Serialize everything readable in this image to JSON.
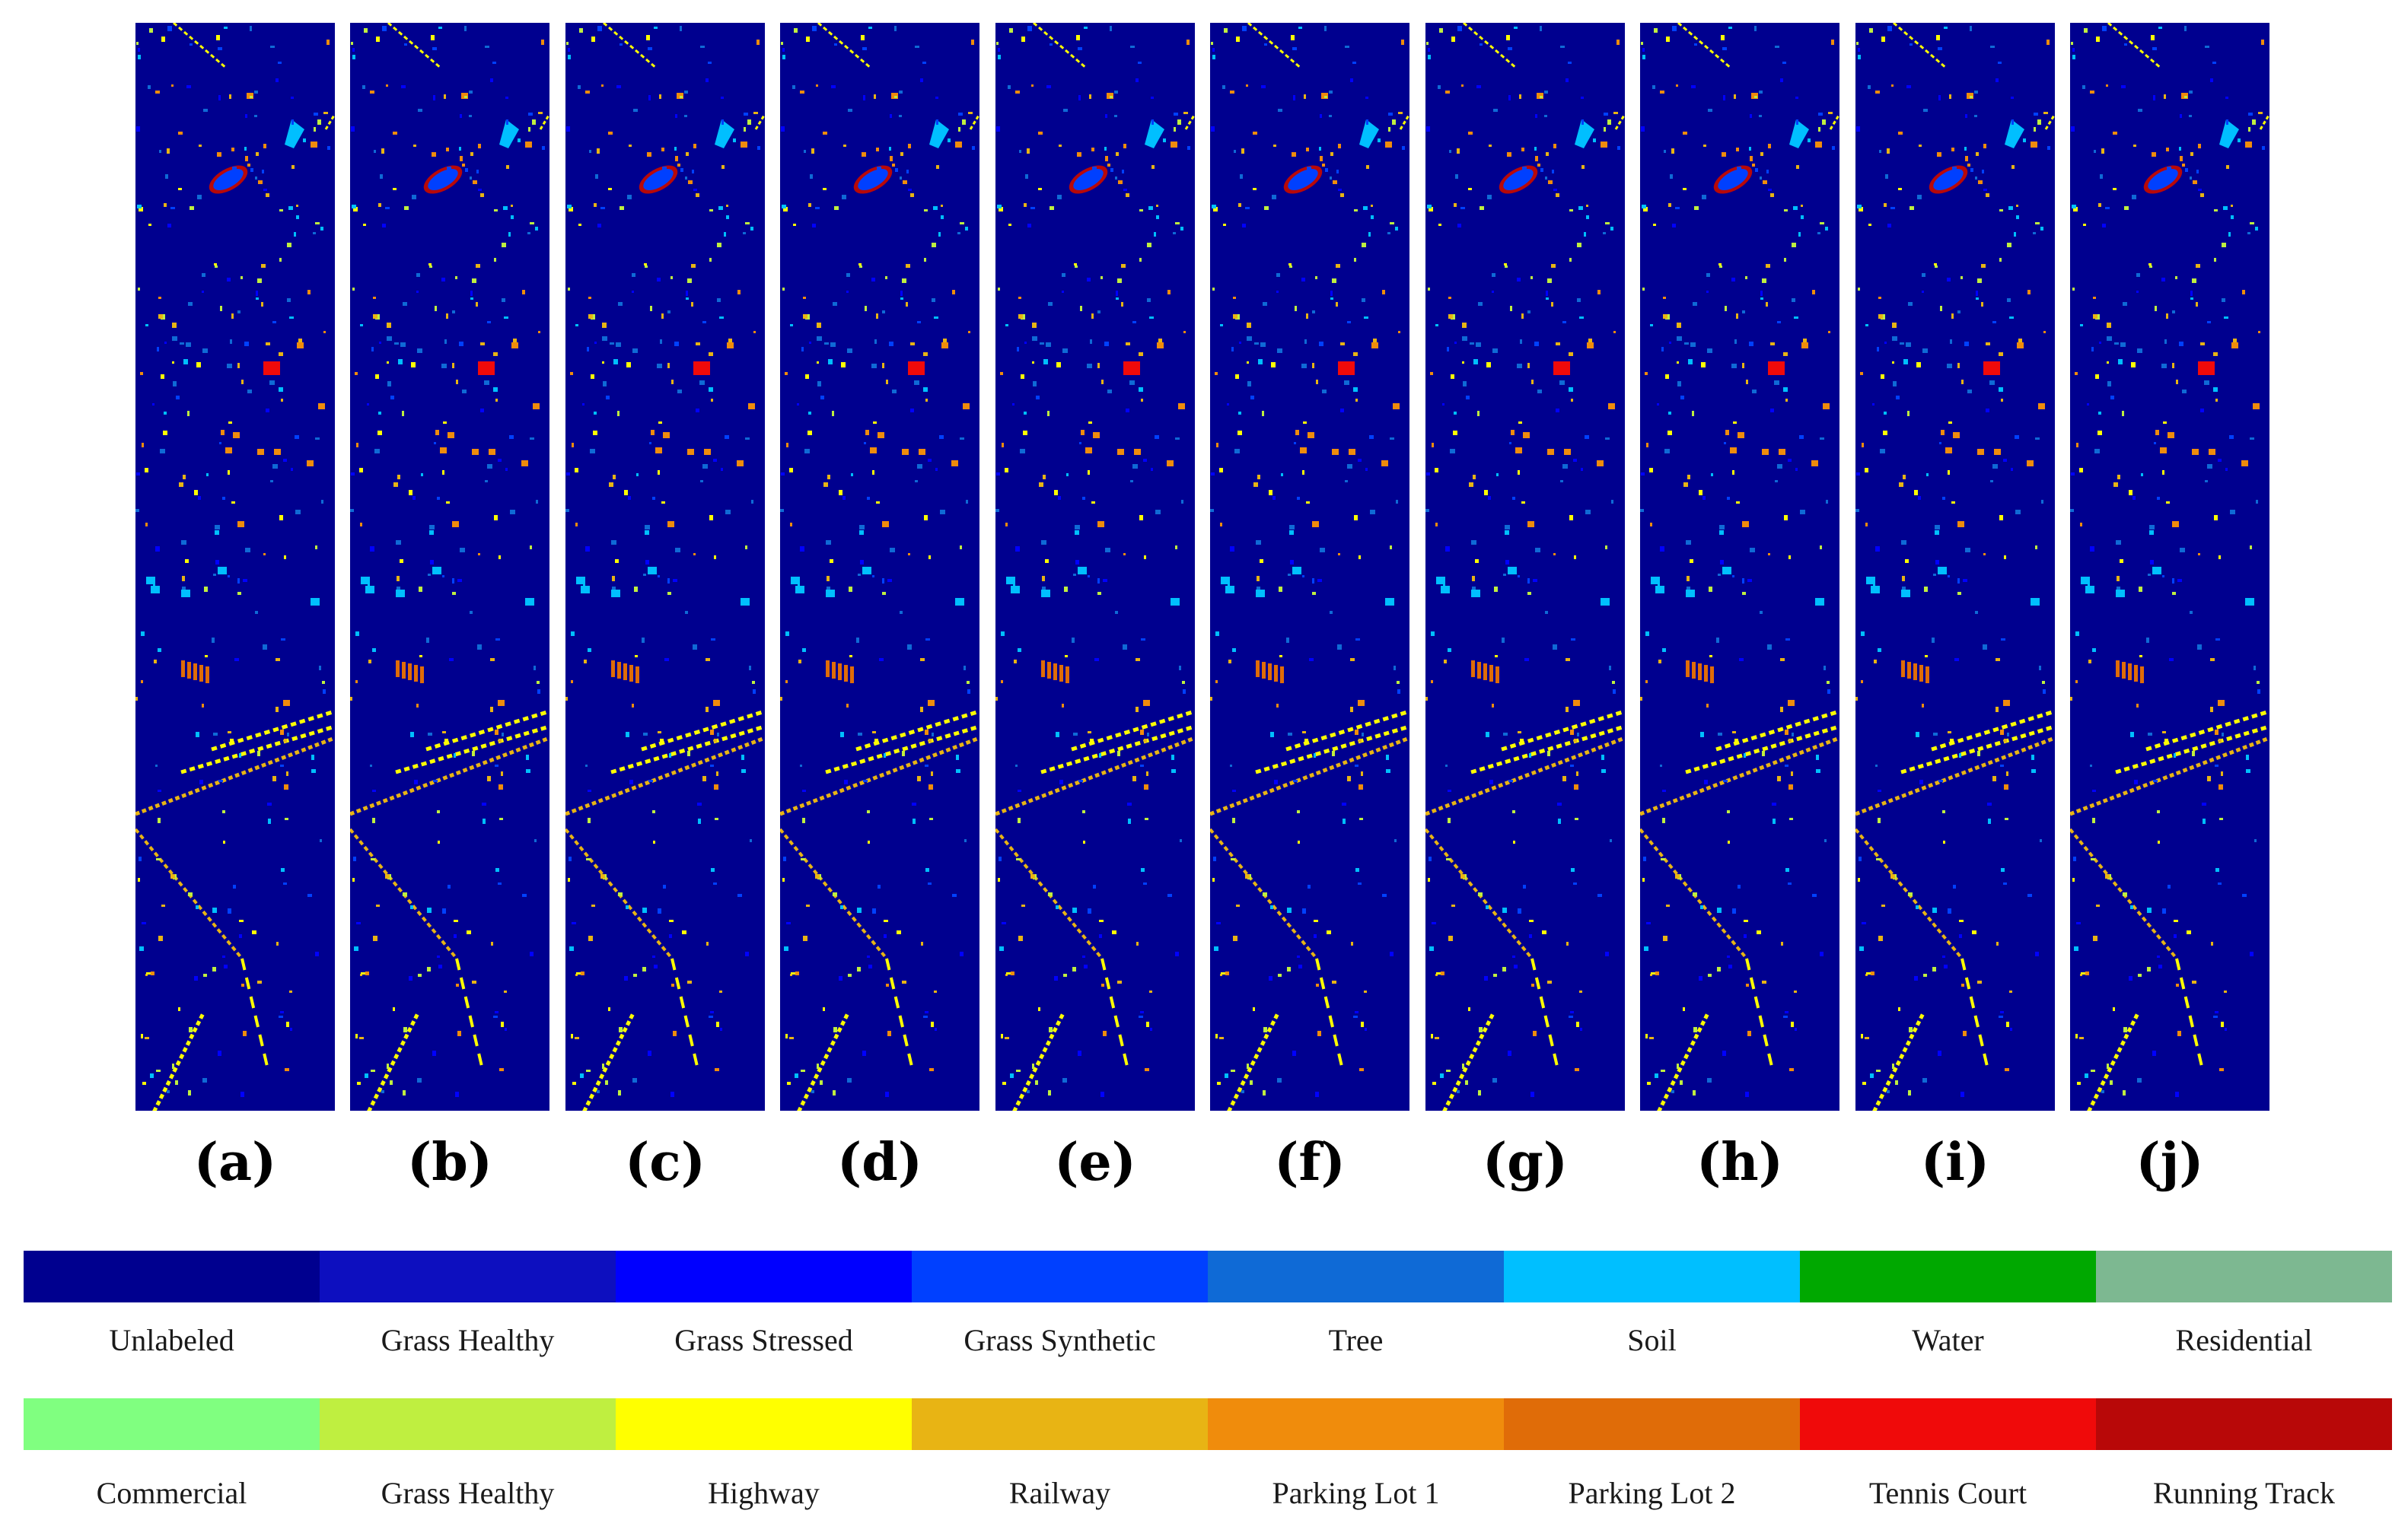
{
  "panels": [
    {
      "label": "(a)"
    },
    {
      "label": "(b)"
    },
    {
      "label": "(c)"
    },
    {
      "label": "(d)"
    },
    {
      "label": "(e)"
    },
    {
      "label": "(f)"
    },
    {
      "label": "(g)"
    },
    {
      "label": "(h)"
    },
    {
      "label": "(i)"
    },
    {
      "label": "(j)"
    }
  ],
  "legend": [
    {
      "name": "Unlabeled",
      "color": "#00008f"
    },
    {
      "name": "Grass Healthy",
      "color": "#0d0fbf"
    },
    {
      "name": "Grass Stressed",
      "color": "#0000ff"
    },
    {
      "name": "Grass Synthetic",
      "color": "#0040ff"
    },
    {
      "name": "Tree",
      "color": "#0f6ad6"
    },
    {
      "name": "Soil",
      "color": "#00bfff"
    },
    {
      "name": "Water",
      "color": "#00a800"
    },
    {
      "name": "Residential",
      "color": "#7db891"
    },
    {
      "name": "Commercial",
      "color": "#80ff80"
    },
    {
      "name": "Grass Healthy",
      "color": "#bfef40"
    },
    {
      "name": "Highway",
      "color": "#ffff00"
    },
    {
      "name": "Railway",
      "color": "#e8b414"
    },
    {
      "name": "Parking Lot 1",
      "color": "#f08c0c"
    },
    {
      "name": "Parking Lot 2",
      "color": "#e06c08"
    },
    {
      "name": "Tennis Court",
      "color": "#f00a0a"
    },
    {
      "name": "Running Track",
      "color": "#b80808"
    }
  ]
}
